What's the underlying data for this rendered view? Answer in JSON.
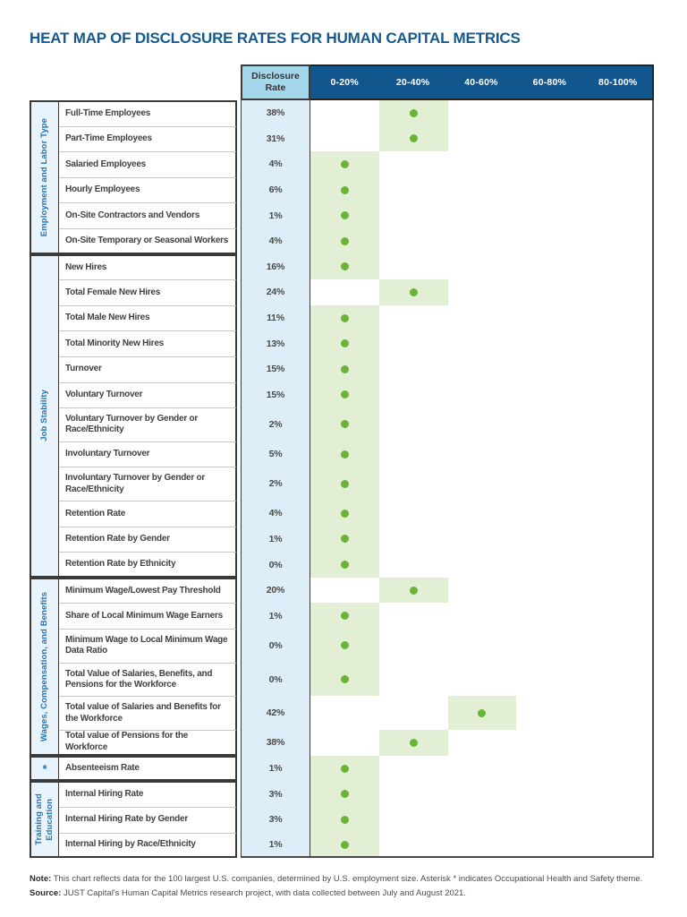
{
  "title": "HEAT MAP OF DISCLOSURE RATES FOR HUMAN CAPITAL METRICS",
  "colors": {
    "title_blue": "#155a8e",
    "header_blue": "#11568c",
    "header_light_blue": "#a6d8eb",
    "column_light_blue": "#ddeef8",
    "category_light_blue": "#e8f3fb",
    "category_text_blue": "#2176bc",
    "cell_green": "#e2efd5",
    "dot_green": "#6ab437",
    "label_text": "#414141"
  },
  "chart_data": {
    "type": "heatmap",
    "title": "HEAT MAP OF DISCLOSURE RATES FOR HUMAN CAPITAL METRICS",
    "value_column_header": "Disclosure Rate",
    "columns": [
      "0-20%",
      "20-40%",
      "40-60%",
      "60-80%",
      "80-100%"
    ],
    "marker": "green-dot",
    "row_groups": [
      {
        "group": "Employment and Labor Type",
        "rows": [
          {
            "label": "Full-Time Employees",
            "pct": 38,
            "bucket": "20-40%"
          },
          {
            "label": "Part-Time Employees",
            "pct": 31,
            "bucket": "20-40%"
          },
          {
            "label": "Salaried Employees",
            "pct": 4,
            "bucket": "0-20%"
          },
          {
            "label": "Hourly Employees",
            "pct": 6,
            "bucket": "0-20%"
          },
          {
            "label": "On-Site Contractors and Vendors",
            "pct": 1,
            "bucket": "0-20%"
          },
          {
            "label": "On-Site Temporary or Seasonal Workers",
            "pct": 4,
            "bucket": "0-20%"
          }
        ]
      },
      {
        "group": "Job Stability",
        "rows": [
          {
            "label": "New Hires",
            "pct": 16,
            "bucket": "0-20%"
          },
          {
            "label": "Total Female New Hires",
            "pct": 24,
            "bucket": "20-40%"
          },
          {
            "label": "Total Male New Hires",
            "pct": 11,
            "bucket": "0-20%"
          },
          {
            "label": "Total Minority New Hires",
            "pct": 13,
            "bucket": "0-20%"
          },
          {
            "label": "Turnover",
            "pct": 15,
            "bucket": "0-20%"
          },
          {
            "label": "Voluntary Turnover",
            "pct": 15,
            "bucket": "0-20%"
          },
          {
            "label": "Voluntary Turnover by Gender or Race/Ethnicity",
            "pct": 2,
            "bucket": "0-20%",
            "tall": true
          },
          {
            "label": "Involuntary Turnover",
            "pct": 5,
            "bucket": "0-20%"
          },
          {
            "label": "Involuntary Turnover by Gender or Race/Ethnicity",
            "pct": 2,
            "bucket": "0-20%",
            "tall": true
          },
          {
            "label": "Retention Rate",
            "pct": 4,
            "bucket": "0-20%"
          },
          {
            "label": "Retention Rate by Gender",
            "pct": 1,
            "bucket": "0-20%"
          },
          {
            "label": "Retention Rate by Ethnicity",
            "pct": 0,
            "bucket": "0-20%"
          }
        ]
      },
      {
        "group": "Wages, Compensation, and Benefits",
        "rows": [
          {
            "label": "Minimum Wage/Lowest Pay Threshold",
            "pct": 20,
            "bucket": "20-40%"
          },
          {
            "label": "Share of Local Minimum Wage Earners",
            "pct": 1,
            "bucket": "0-20%"
          },
          {
            "label": "Minimum Wage to Local Minimum Wage Data Ratio",
            "pct": 0,
            "bucket": "0-20%",
            "tall": true
          },
          {
            "label": "Total Value of Salaries, Benefits, and Pensions for the Workforce",
            "pct": 0,
            "bucket": "0-20%",
            "tall": true
          },
          {
            "label": "Total value of Salaries and Benefits for the Workforce",
            "pct": 42,
            "bucket": "40-60%",
            "tall": true
          },
          {
            "label": "Total value of Pensions for the Workforce",
            "pct": 38,
            "bucket": "20-40%"
          }
        ]
      },
      {
        "group": "*",
        "rows": [
          {
            "label": "Absenteeism Rate",
            "pct": 1,
            "bucket": "0-20%"
          }
        ]
      },
      {
        "group": "Training and Education",
        "rows": [
          {
            "label": "Internal Hiring Rate",
            "pct": 3,
            "bucket": "0-20%"
          },
          {
            "label": "Internal Hiring Rate by Gender",
            "pct": 3,
            "bucket": "0-20%"
          },
          {
            "label": "Internal Hiring by Race/Ethnicity",
            "pct": 1,
            "bucket": "0-20%"
          }
        ]
      }
    ]
  },
  "footer": {
    "note_label": "Note:",
    "note_text": "This chart reflects data for the 100 largest U.S. companies, determined by U.S. employment size. Asterisk * indicates Occupational Health and Safety theme.",
    "source_label": "Source:",
    "source_text": "JUST Capital's Human Capital Metrics research project, with data collected between July and August 2021."
  }
}
